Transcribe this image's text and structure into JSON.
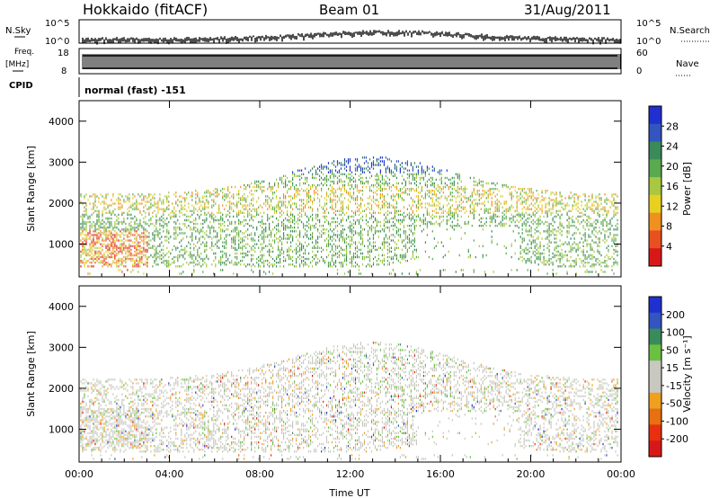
{
  "header": {
    "station": "Hokkaido (fitACF)",
    "beam": "Beam 01",
    "date": "31/Aug/2011"
  },
  "top_panels": {
    "nsky_label": "N.Sky",
    "nsky_ticks": [
      "10^5",
      "10^0"
    ],
    "nsearch_label": "N.Search",
    "nsearch_ticks": [
      "10^5",
      "10^0"
    ],
    "freq_label": "Freq.",
    "freq_unit": "[MHz]",
    "freq_ticks": [
      "18",
      "8"
    ],
    "nave_label": "Nave",
    "nave_ticks": [
      "60",
      "0"
    ],
    "cpid_label": "CPID",
    "cpid_text": "normal (fast) -151"
  },
  "colors": {
    "power": [
      "#2030d0",
      "#3355c0",
      "#3a8a5a",
      "#5aaa50",
      "#a8c840",
      "#e8d020",
      "#f09020",
      "#e85020",
      "#d81818"
    ],
    "velocity": [
      "#2030d0",
      "#3355c0",
      "#3a8a5a",
      "#6ac040",
      "#c8c8c0",
      "#c8c8c0",
      "#f0a020",
      "#e87010",
      "#e83010",
      "#d81818"
    ]
  },
  "chart_data": [
    {
      "type": "heatmap",
      "title": "Power",
      "ylabel": "Slant Range [km]",
      "yticks": [
        "1000",
        "2000",
        "3000",
        "4000"
      ],
      "ylim": [
        200,
        4500
      ],
      "xticks": [
        "00:00",
        "04:00",
        "08:00",
        "12:00",
        "16:00",
        "20:00",
        "00:00"
      ],
      "colorbar_label": "Power [dB]",
      "colorbar_ticks": [
        "4",
        "8",
        "12",
        "16",
        "20",
        "24",
        "28"
      ]
    },
    {
      "type": "heatmap",
      "title": "Velocity",
      "ylabel": "Slant Range [km]",
      "yticks": [
        "1000",
        "2000",
        "3000",
        "4000"
      ],
      "ylim": [
        200,
        4500
      ],
      "xticks": [
        "00:00",
        "04:00",
        "08:00",
        "12:00",
        "16:00",
        "20:00",
        "00:00"
      ],
      "xlabel": "Time UT",
      "colorbar_label": "Velocity [m s⁻¹]",
      "colorbar_ticks": [
        "200",
        "100",
        "50",
        "15",
        "-15",
        "-50",
        "-100",
        "-200"
      ]
    }
  ]
}
